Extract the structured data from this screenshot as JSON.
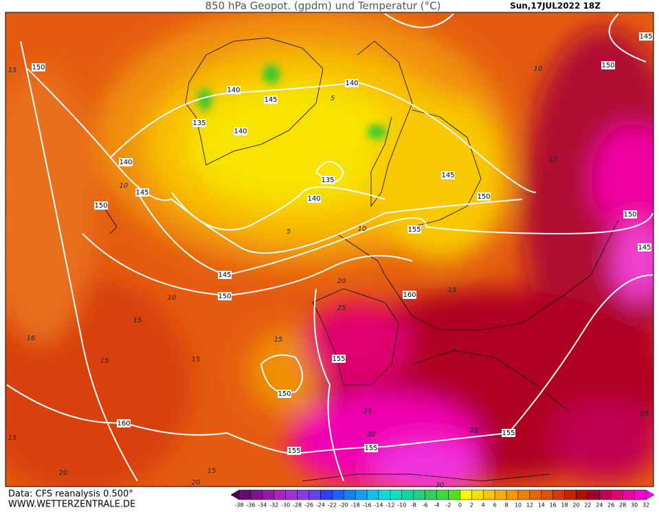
{
  "header": {
    "title": "850 hPa Geopot. (gpdm) und Temperatur (°C)",
    "valid_time": "Sun,17JUL2022 18Z"
  },
  "footer": {
    "source": "Data: CFS reanalysis 0.500°",
    "website": "WWW.WETTERZENTRALE.DE"
  },
  "map": {
    "geopotential_labels": [
      150,
      140,
      145,
      135,
      140,
      140,
      145,
      150,
      140,
      145,
      150,
      135,
      140,
      145,
      150,
      155,
      150,
      145,
      145,
      150,
      160,
      155,
      150,
      160,
      155,
      155,
      155
    ],
    "temperature_labels": [
      15,
      10,
      5,
      10,
      5,
      10,
      15,
      20,
      25,
      15,
      10,
      15,
      15,
      15,
      15,
      16,
      15,
      20,
      15,
      20,
      25,
      30,
      25,
      30,
      25
    ]
  },
  "legend": {
    "ticks": [
      -38,
      -36,
      -34,
      -32,
      -30,
      -28,
      -26,
      -24,
      -22,
      -20,
      -18,
      -16,
      -14,
      -12,
      -10,
      -8,
      -6,
      -4,
      -2,
      0,
      2,
      4,
      6,
      8,
      10,
      12,
      14,
      16,
      18,
      20,
      22,
      24,
      26,
      28,
      30,
      32
    ],
    "colors": [
      "#4b0050",
      "#6a0a78",
      "#80108e",
      "#9a18a8",
      "#b020c0",
      "#a030d8",
      "#8a3ae8",
      "#6040f0",
      "#3040f0",
      "#2060f8",
      "#1080f8",
      "#10a0f8",
      "#10c0f0",
      "#10d8e0",
      "#10e0c0",
      "#10d8a0",
      "#20d080",
      "#30d060",
      "#40d840",
      "#50e020",
      "#f8f800",
      "#f8e000",
      "#f8c800",
      "#f8b000",
      "#f89800",
      "#f08000",
      "#e86800",
      "#e05000",
      "#d83800",
      "#c82000",
      "#b01000",
      "#a00030",
      "#c00050",
      "#e00070",
      "#f000a0",
      "#f800d0",
      "#f800f0"
    ]
  }
}
